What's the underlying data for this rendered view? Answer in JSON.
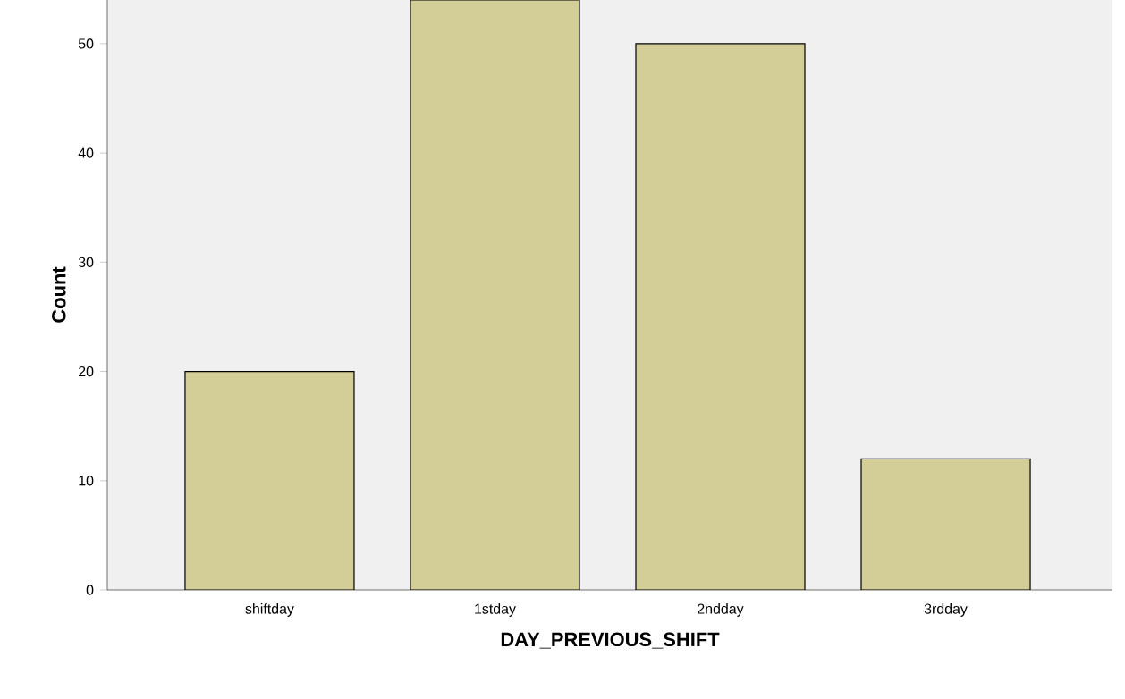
{
  "chart_data": {
    "type": "bar",
    "xlabel": "DAY_PREVIOUS_SHIFT",
    "ylabel": "Count",
    "categories": [
      "shiftday",
      "1stday",
      "2ndday",
      "3rdday"
    ],
    "values": [
      20,
      54,
      50,
      12
    ],
    "color": "#d3ce97",
    "ylim": [
      0,
      54
    ],
    "yticks": [
      0,
      10,
      20,
      30,
      40,
      50
    ],
    "grid": false
  }
}
